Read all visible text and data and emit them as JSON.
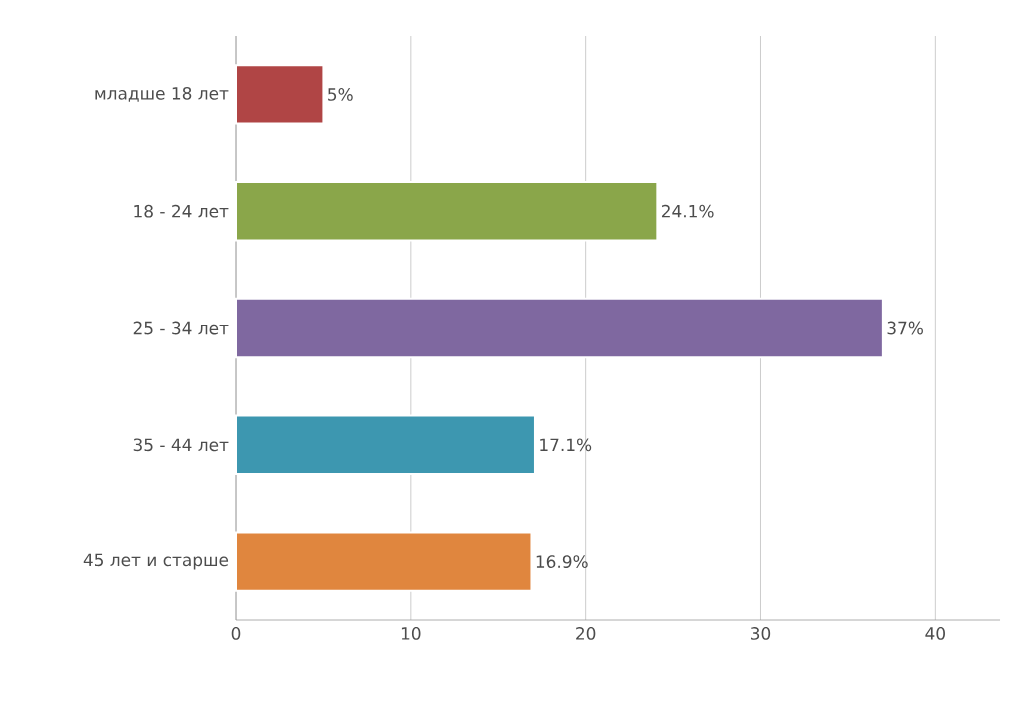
{
  "chart_data": {
    "type": "bar",
    "orientation": "horizontal",
    "categories": [
      "младше 18 лет",
      "18 - 24 лет",
      "25 - 34 лет",
      "35 - 44 лет",
      "45 лет и старше"
    ],
    "values": [
      5,
      24.1,
      37,
      17.1,
      16.9
    ],
    "colors": [
      "#b04545",
      "#8aa64a",
      "#7f68a0",
      "#3d97b0",
      "#e0863e"
    ],
    "value_labels": [
      "5%",
      "24.1%",
      "37%",
      "17.1%",
      "16.9%"
    ],
    "xlim": [
      0,
      43.7
    ],
    "xticks": [
      0,
      10,
      20,
      30,
      40
    ],
    "grid": "x"
  }
}
